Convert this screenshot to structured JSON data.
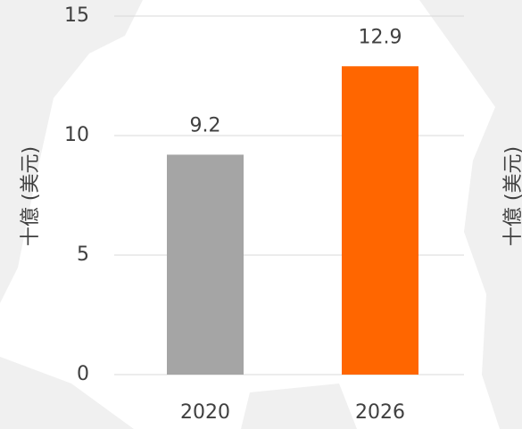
{
  "chart_data": {
    "type": "bar",
    "y_label": "十億 (美元)",
    "categories": [
      "2020",
      "2026"
    ],
    "values": [
      9.2,
      12.9
    ],
    "colors": [
      "#a5a5a5",
      "#ff6600"
    ],
    "ylim": [
      0,
      15
    ],
    "yticks": [
      0,
      5,
      10,
      15
    ],
    "grid": true
  }
}
